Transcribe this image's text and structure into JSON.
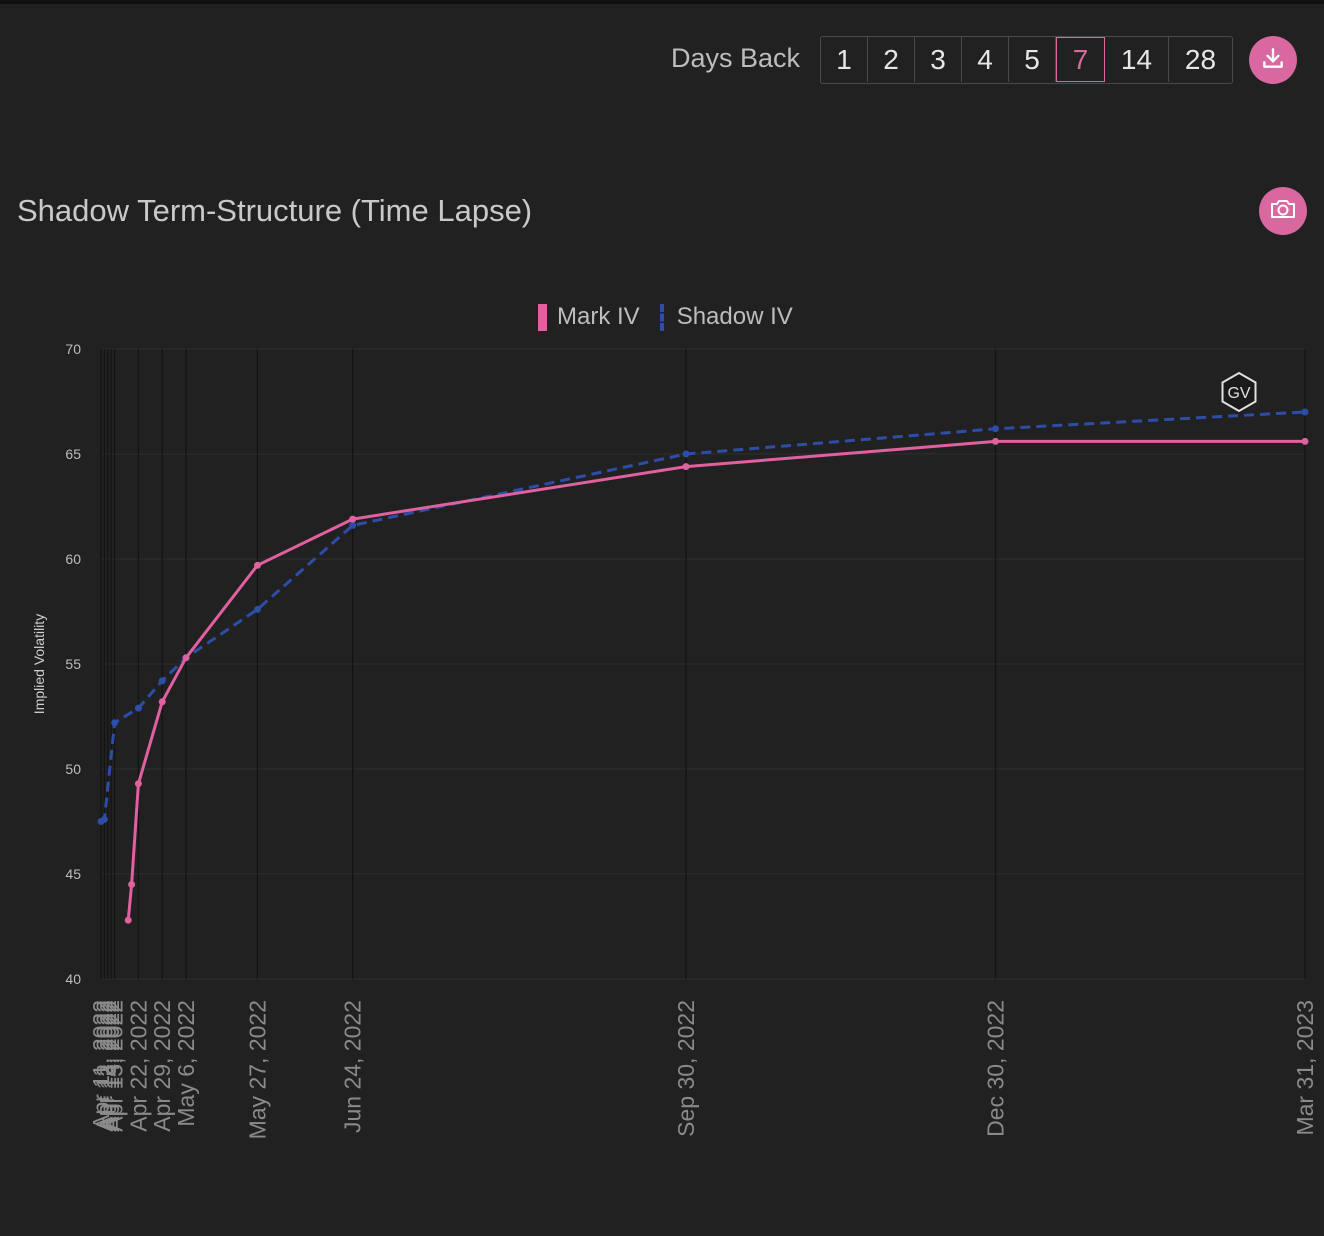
{
  "controls": {
    "days_back_label": "Days Back",
    "days_options": [
      "1",
      "2",
      "3",
      "4",
      "5",
      "7",
      "14",
      "28"
    ],
    "active_days": "7",
    "download_icon": "download-icon",
    "camera_icon": "camera-icon"
  },
  "colors": {
    "mark": "#e060a0",
    "shadow": "#2c4ea8",
    "accent": "#d8689f"
  },
  "chart_data": {
    "type": "line",
    "title": "Shadow Term-Structure (Time Lapse)",
    "ylabel": "Implied Volatility",
    "xlabel": "",
    "x_ticks": [
      "Apr 11, 2022",
      "Apr 12, 2022",
      "Apr 13, 2022",
      "Apr 14, 2022",
      "Apr 15, 2022",
      "Apr 22, 2022",
      "Apr 29, 2022",
      "May 6, 2022",
      "May 27, 2022",
      "Jun 24, 2022",
      "Sep 30, 2022",
      "Dec 30, 2022",
      "Mar 31, 2023"
    ],
    "x_range": [
      "2022-04-11",
      "2023-03-31"
    ],
    "ylim": [
      40,
      70
    ],
    "y_ticks": [
      40,
      45,
      50,
      55,
      60,
      65,
      70
    ],
    "grid": true,
    "legend_position": "top-center",
    "series": [
      {
        "name": "Mark IV",
        "style": "solid",
        "x": [
          "2022-04-19",
          "2022-04-20",
          "2022-04-22",
          "2022-04-29",
          "2022-05-06",
          "2022-05-27",
          "2022-06-24",
          "2022-09-30",
          "2022-12-30",
          "2023-03-31"
        ],
        "values": [
          42.8,
          44.5,
          49.3,
          53.2,
          55.3,
          59.7,
          61.9,
          64.4,
          65.6,
          65.6
        ]
      },
      {
        "name": "Shadow IV",
        "style": "dashed",
        "x": [
          "2022-04-11",
          "2022-04-12",
          "2022-04-15",
          "2022-04-22",
          "2022-04-29",
          "2022-05-06",
          "2022-05-27",
          "2022-06-24",
          "2022-09-30",
          "2022-12-30",
          "2023-03-31"
        ],
        "values": [
          47.5,
          47.6,
          52.2,
          52.9,
          54.2,
          55.3,
          57.6,
          61.6,
          65.0,
          66.2,
          67.0
        ]
      }
    ]
  }
}
